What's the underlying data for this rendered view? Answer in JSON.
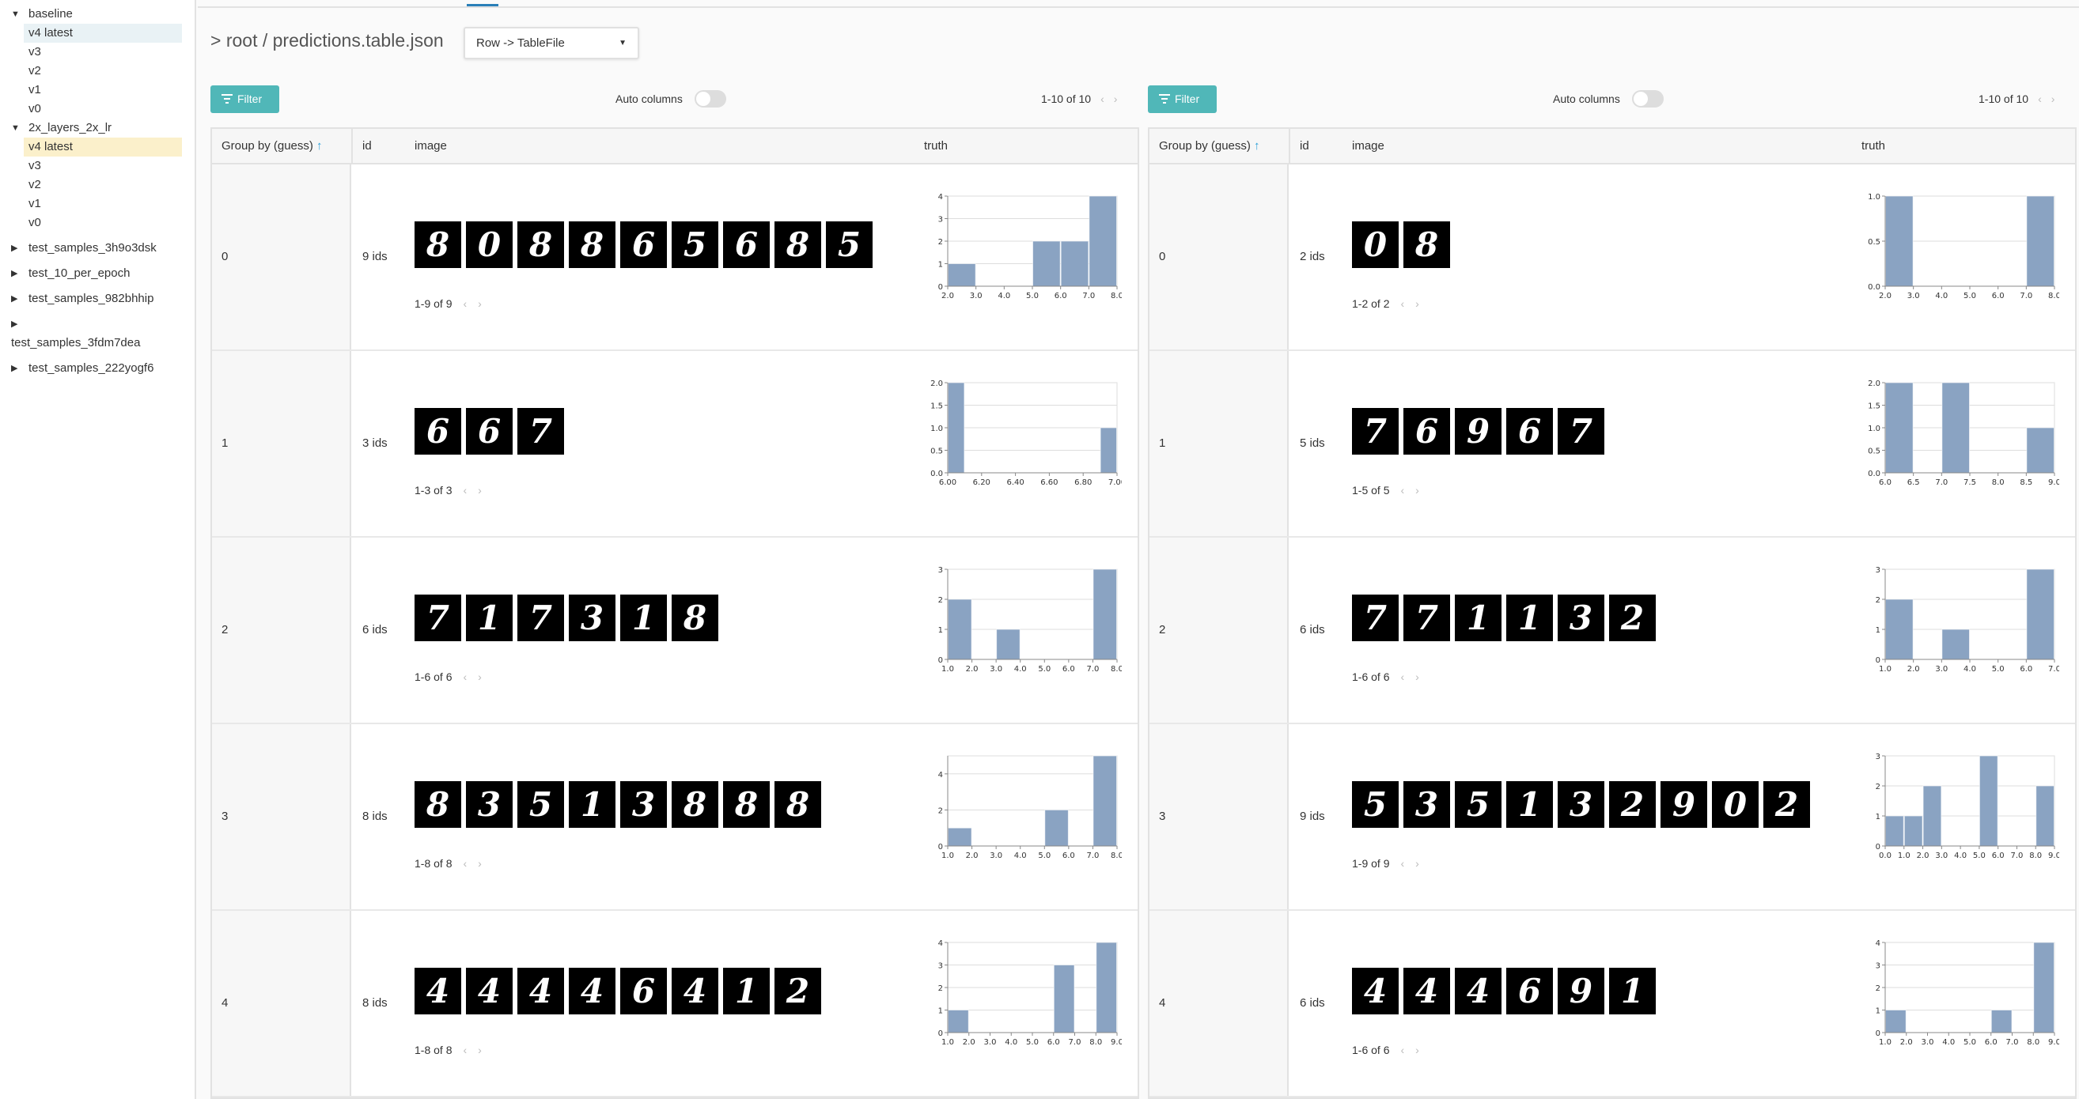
{
  "sidebar": {
    "items": [
      {
        "label": "baseline",
        "type": "group",
        "expanded": true
      },
      {
        "label": "v4 latest",
        "type": "ver",
        "selected": "blue"
      },
      {
        "label": "v3",
        "type": "ver"
      },
      {
        "label": "v2",
        "type": "ver"
      },
      {
        "label": "v1",
        "type": "ver"
      },
      {
        "label": "v0",
        "type": "ver"
      },
      {
        "label": "2x_layers_2x_lr",
        "type": "group",
        "expanded": true
      },
      {
        "label": "v4 latest",
        "type": "ver",
        "selected": "yellow"
      },
      {
        "label": "v3",
        "type": "ver"
      },
      {
        "label": "v2",
        "type": "ver"
      },
      {
        "label": "v1",
        "type": "ver"
      },
      {
        "label": "v0",
        "type": "ver"
      },
      {
        "label": "test_samples_3h9o3dsk",
        "type": "group",
        "expanded": false
      },
      {
        "label": "test_10_per_epoch",
        "type": "group",
        "expanded": false
      },
      {
        "label": "test_samples_982bhhip",
        "type": "group",
        "expanded": false
      },
      {
        "label": "test_samples_3fdm7dea",
        "type": "group-wrapped",
        "expanded": false
      },
      {
        "label": "test_samples_222yogf6",
        "type": "group",
        "expanded": false
      }
    ]
  },
  "header": {
    "breadcrumb": "> root / predictions.table.json",
    "dropdown": "Row -> TableFile"
  },
  "colors": {
    "accent": "#50b7b8",
    "bar": "#8aa3c2",
    "tab": "#2a7fb8",
    "sort": "#2a9fd8"
  },
  "panels": [
    {
      "filter_label": "Filter",
      "auto_columns": "Auto columns",
      "auto_columns_on": false,
      "pager": "1-10 of 10",
      "columns": [
        "Group by (guess)",
        "id",
        "image",
        "truth"
      ],
      "rows": [
        {
          "group": "0",
          "ids": "9 ids",
          "digits": [
            "8",
            "0",
            "8",
            "8",
            "6",
            "5",
            "6",
            "8",
            "5"
          ],
          "pager": "1-9 of 9",
          "chart": {
            "type": "bar",
            "xlim": [
              2,
              8
            ],
            "xticks": [
              "2.0",
              "3.0",
              "4.0",
              "5.0",
              "6.0",
              "7.0",
              "8.0"
            ],
            "ylim": [
              0,
              4
            ],
            "yticks": [
              "0",
              "1",
              "2",
              "3",
              "4"
            ],
            "bins": [
              [
                2,
                3,
                1
              ],
              [
                5,
                6,
                2
              ],
              [
                6,
                7,
                2
              ],
              [
                7,
                8,
                4
              ]
            ]
          }
        },
        {
          "group": "1",
          "ids": "3 ids",
          "digits": [
            "6",
            "6",
            "7"
          ],
          "pager": "1-3 of 3",
          "chart": {
            "type": "bar",
            "xlim": [
              6,
              7
            ],
            "xticks": [
              "6.00",
              "6.20",
              "6.40",
              "6.60",
              "6.80",
              "7.00"
            ],
            "ylim": [
              0,
              2
            ],
            "yticks": [
              "0.0",
              "0.5",
              "1.0",
              "1.5",
              "2.0"
            ],
            "bins": [
              [
                6,
                6.1,
                2
              ],
              [
                6.9,
                7,
                1
              ]
            ]
          }
        },
        {
          "group": "2",
          "ids": "6 ids",
          "digits": [
            "7",
            "1",
            "7",
            "3",
            "1",
            "8"
          ],
          "pager": "1-6 of 6",
          "chart": {
            "type": "bar",
            "xlim": [
              1,
              8
            ],
            "xticks": [
              "1.0",
              "2.0",
              "3.0",
              "4.0",
              "5.0",
              "6.0",
              "7.0",
              "8.0"
            ],
            "ylim": [
              0,
              3
            ],
            "yticks": [
              "0",
              "1",
              "2",
              "3"
            ],
            "bins": [
              [
                1,
                2,
                2
              ],
              [
                3,
                4,
                1
              ],
              [
                7,
                8,
                3
              ]
            ]
          }
        },
        {
          "group": "3",
          "ids": "8 ids",
          "digits": [
            "8",
            "3",
            "5",
            "1",
            "3",
            "8",
            "8",
            "8"
          ],
          "pager": "1-8 of 8",
          "chart": {
            "type": "bar",
            "xlim": [
              1,
              8
            ],
            "xticks": [
              "1.0",
              "2.0",
              "3.0",
              "4.0",
              "5.0",
              "6.0",
              "7.0",
              "8.0"
            ],
            "ylim": [
              0,
              5
            ],
            "yticks": [
              "0",
              "2",
              "4"
            ],
            "bins": [
              [
                1,
                2,
                1
              ],
              [
                5,
                6,
                2
              ],
              [
                7,
                8,
                5
              ]
            ]
          }
        },
        {
          "group": "4",
          "ids": "8 ids",
          "digits": [
            "4",
            "4",
            "4",
            "4",
            "6",
            "4",
            "1",
            "2"
          ],
          "pager": "1-8 of 8",
          "chart": {
            "type": "bar",
            "xlim": [
              1,
              9
            ],
            "xticks": [
              "1.0",
              "2.0",
              "3.0",
              "4.0",
              "5.0",
              "6.0",
              "7.0",
              "8.0",
              "9.0"
            ],
            "ylim": [
              0,
              4
            ],
            "yticks": [
              "0",
              "1",
              "2",
              "3",
              "4"
            ],
            "bins": [
              [
                1,
                2,
                1
              ],
              [
                6,
                7,
                3
              ],
              [
                8,
                9,
                4
              ]
            ]
          }
        }
      ]
    },
    {
      "filter_label": "Filter",
      "auto_columns": "Auto columns",
      "auto_columns_on": false,
      "pager": "1-10 of 10",
      "columns": [
        "Group by (guess)",
        "id",
        "image",
        "truth"
      ],
      "rows": [
        {
          "group": "0",
          "ids": "2 ids",
          "digits": [
            "0",
            "8"
          ],
          "pager": "1-2 of 2",
          "chart": {
            "type": "bar",
            "xlim": [
              2,
              8
            ],
            "xticks": [
              "2.0",
              "3.0",
              "4.0",
              "5.0",
              "6.0",
              "7.0",
              "8.0"
            ],
            "ylim": [
              0,
              1
            ],
            "yticks": [
              "0.0",
              "0.5",
              "1.0"
            ],
            "bins": [
              [
                2,
                3,
                1
              ],
              [
                7,
                8,
                1
              ]
            ]
          }
        },
        {
          "group": "1",
          "ids": "5 ids",
          "digits": [
            "7",
            "6",
            "9",
            "6",
            "7"
          ],
          "pager": "1-5 of 5",
          "chart": {
            "type": "bar",
            "xlim": [
              6,
              9
            ],
            "xticks": [
              "6.0",
              "6.5",
              "7.0",
              "7.5",
              "8.0",
              "8.5",
              "9.0"
            ],
            "ylim": [
              0,
              2
            ],
            "yticks": [
              "0.0",
              "0.5",
              "1.0",
              "1.5",
              "2.0"
            ],
            "bins": [
              [
                6,
                6.5,
                2
              ],
              [
                7,
                7.5,
                2
              ],
              [
                8.5,
                9,
                1
              ]
            ]
          }
        },
        {
          "group": "2",
          "ids": "6 ids",
          "digits": [
            "7",
            "7",
            "1",
            "1",
            "3",
            "2"
          ],
          "pager": "1-6 of 6",
          "chart": {
            "type": "bar",
            "xlim": [
              1,
              7
            ],
            "xticks": [
              "1.0",
              "2.0",
              "3.0",
              "4.0",
              "5.0",
              "6.0",
              "7.0"
            ],
            "ylim": [
              0,
              3
            ],
            "yticks": [
              "0",
              "1",
              "2",
              "3"
            ],
            "bins": [
              [
                1,
                2,
                2
              ],
              [
                3,
                4,
                1
              ],
              [
                6,
                7,
                3
              ]
            ]
          }
        },
        {
          "group": "3",
          "ids": "9 ids",
          "digits": [
            "5",
            "3",
            "5",
            "1",
            "3",
            "2",
            "9",
            "0",
            "2"
          ],
          "pager": "1-9 of 9",
          "chart": {
            "type": "bar",
            "xlim": [
              0,
              9
            ],
            "xticks": [
              "0.0",
              "1.0",
              "2.0",
              "3.0",
              "4.0",
              "5.0",
              "6.0",
              "7.0",
              "8.0",
              "9.0"
            ],
            "ylim": [
              0,
              3
            ],
            "yticks": [
              "0",
              "1",
              "2",
              "3"
            ],
            "bins": [
              [
                0,
                1,
                1
              ],
              [
                1,
                2,
                1
              ],
              [
                2,
                3,
                2
              ],
              [
                5,
                6,
                3
              ],
              [
                8,
                9,
                2
              ]
            ]
          }
        },
        {
          "group": "4",
          "ids": "6 ids",
          "digits": [
            "4",
            "4",
            "4",
            "6",
            "9",
            "1"
          ],
          "pager": "1-6 of 6",
          "chart": {
            "type": "bar",
            "xlim": [
              1,
              9
            ],
            "xticks": [
              "1.0",
              "2.0",
              "3.0",
              "4.0",
              "5.0",
              "6.0",
              "7.0",
              "8.0",
              "9.0"
            ],
            "ylim": [
              0,
              4
            ],
            "yticks": [
              "0",
              "1",
              "2",
              "3",
              "4"
            ],
            "bins": [
              [
                1,
                2,
                1
              ],
              [
                6,
                7,
                1
              ],
              [
                8,
                9,
                4
              ]
            ]
          }
        }
      ]
    }
  ]
}
